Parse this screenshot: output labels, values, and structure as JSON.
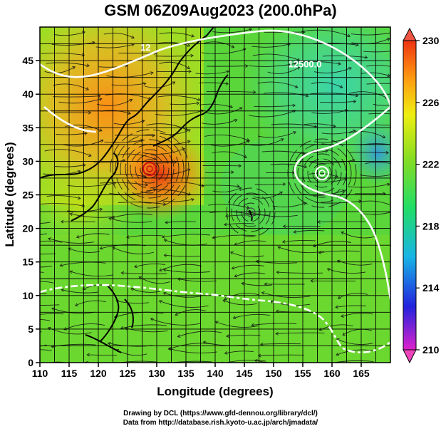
{
  "title": "GSM 06Z09Aug2023 (200.0hPa)",
  "xaxis": {
    "label": "Longitude (degrees)",
    "range": [
      110,
      170
    ],
    "ticks": [
      110,
      115,
      120,
      125,
      130,
      135,
      140,
      145,
      150,
      155,
      160,
      165
    ]
  },
  "yaxis": {
    "label": "Latitude  (degrees)",
    "range": [
      0,
      50
    ],
    "ticks": [
      0,
      5,
      10,
      15,
      20,
      25,
      30,
      35,
      40,
      45
    ]
  },
  "colorbar": {
    "range": [
      210,
      230
    ],
    "ticks": [
      210,
      214,
      218,
      222,
      226,
      230
    ],
    "colors": [
      "#dd22cc",
      "#2222dd",
      "#18b4e6",
      "#22dd66",
      "#88dd22",
      "#eeee11",
      "#ff9911",
      "#ee3311"
    ]
  },
  "contours": [
    {
      "label": "12500.0",
      "label_lon": 152.5,
      "label_lat": 44.0
    },
    {
      "label": "12",
      "label_lon": 127.2,
      "label_lat": 46.5
    }
  ],
  "credits": [
    "Drawing by DCL (https://www.gfd-dennou.org/library/dcl/)",
    "Data from http://database.rish.kyoto-u.ac.jp/arch/jmadata/"
  ]
}
